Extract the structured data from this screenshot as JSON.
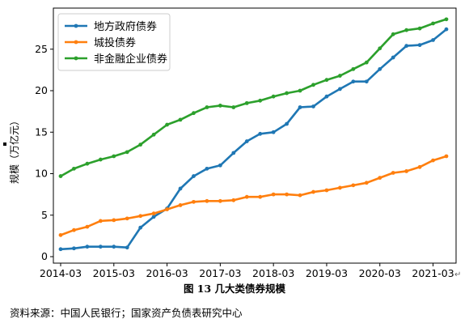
{
  "chart_data": {
    "type": "line",
    "ylabel": "规模（万亿元）",
    "xlabel": "",
    "ylim": [
      0,
      28
    ],
    "yticks": [
      0,
      5,
      10,
      15,
      20,
      25
    ],
    "xticks": [
      "2014-03",
      "2015-03",
      "2016-03",
      "2017-03",
      "2018-03",
      "2019-03",
      "2020-03",
      "2021-03"
    ],
    "legend_position": "top-left",
    "grid": false,
    "x": [
      "2014-03",
      "2014-06",
      "2014-09",
      "2014-12",
      "2015-03",
      "2015-06",
      "2015-09",
      "2015-12",
      "2016-03",
      "2016-06",
      "2016-09",
      "2016-12",
      "2017-03",
      "2017-06",
      "2017-09",
      "2017-12",
      "2018-03",
      "2018-06",
      "2018-09",
      "2018-12",
      "2019-03",
      "2019-06",
      "2019-09",
      "2019-12",
      "2020-03",
      "2020-06",
      "2020-09",
      "2020-12",
      "2021-03",
      "2021-06"
    ],
    "series": [
      {
        "name": "地方政府债券",
        "color": "#1f77b4",
        "values": [
          0.9,
          1.0,
          1.2,
          1.2,
          1.2,
          1.1,
          3.5,
          4.8,
          5.8,
          8.2,
          9.7,
          10.6,
          11.0,
          12.5,
          13.9,
          14.8,
          15.0,
          16.0,
          18.0,
          18.1,
          19.3,
          20.2,
          21.1,
          21.1,
          22.6,
          24.0,
          25.4,
          25.5,
          26.1,
          27.4
        ]
      },
      {
        "name": "城投债券",
        "color": "#ff7f0e",
        "values": [
          2.6,
          3.2,
          3.6,
          4.3,
          4.4,
          4.6,
          4.9,
          5.2,
          5.7,
          6.2,
          6.6,
          6.7,
          6.7,
          6.8,
          7.2,
          7.2,
          7.5,
          7.5,
          7.4,
          7.8,
          8.0,
          8.3,
          8.6,
          8.9,
          9.5,
          10.1,
          10.3,
          10.8,
          11.6,
          12.1
        ]
      },
      {
        "name": "非金融企业债券",
        "color": "#2ca02c",
        "values": [
          9.7,
          10.6,
          11.2,
          11.7,
          12.1,
          12.6,
          13.5,
          14.7,
          15.9,
          16.5,
          17.3,
          18.0,
          18.2,
          18.0,
          18.5,
          18.8,
          19.3,
          19.7,
          20.0,
          20.7,
          21.3,
          21.8,
          22.6,
          23.4,
          25.1,
          26.8,
          27.3,
          27.5,
          28.1,
          28.6
        ]
      }
    ]
  },
  "caption": "图  13 几大类债券规模",
  "source": "资料来源：中国人民银行；国家资产负债表研究中心",
  "colors": {
    "axis": "#000000",
    "background": "#ffffff"
  }
}
